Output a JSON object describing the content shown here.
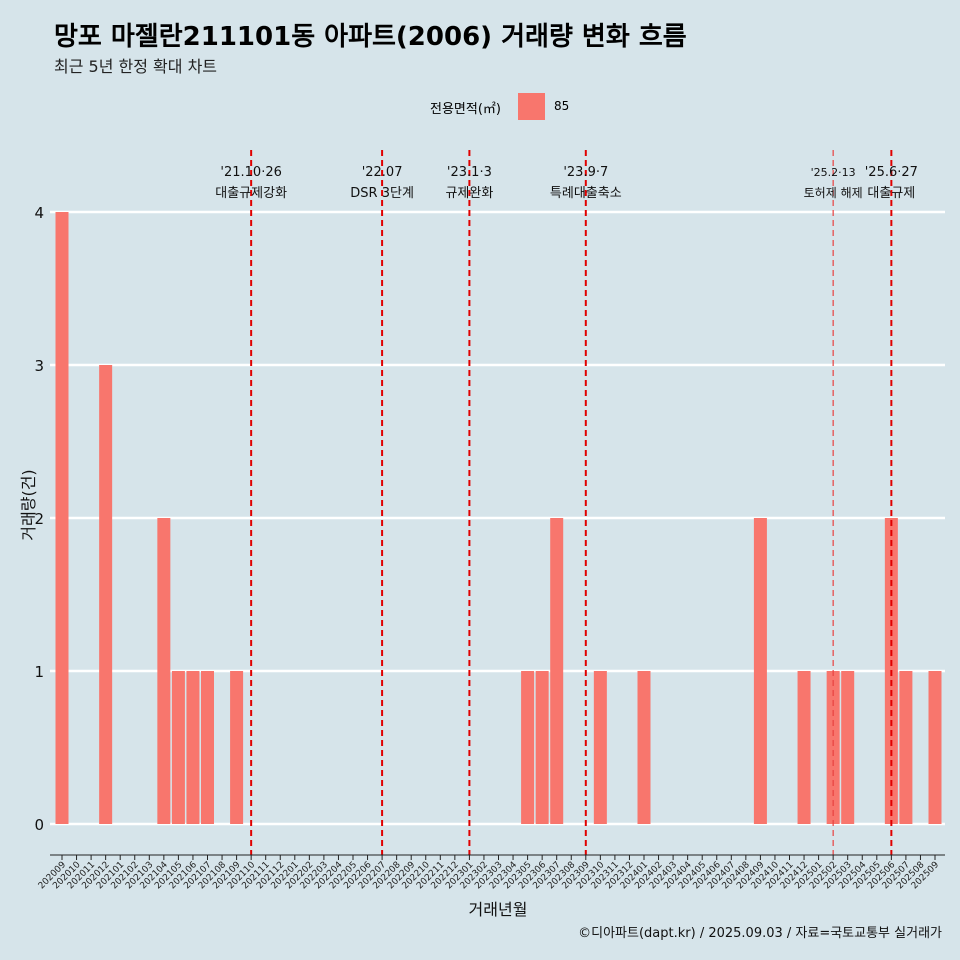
{
  "title": "망포 마젤란211101동 아파트(2006) 거래량 변화 흐름",
  "subtitle": "최근 5년 한정 확대 차트",
  "legend": {
    "title": "전용면적(㎡)",
    "label": "85",
    "color": "#f8766d"
  },
  "footer": "©디아파트(dapt.kr) / 2025.09.03 / 자료=국토교통부 실거래가",
  "chart_data": {
    "type": "bar",
    "xlabel": "거래년월",
    "ylabel": "거래량(건)",
    "ylim": [
      0,
      4
    ],
    "yticks": [
      0,
      1,
      2,
      3,
      4
    ],
    "categories": [
      "202009",
      "202010",
      "202011",
      "202012",
      "202101",
      "202102",
      "202103",
      "202104",
      "202105",
      "202106",
      "202107",
      "202108",
      "202109",
      "202110",
      "202111",
      "202112",
      "202201",
      "202202",
      "202203",
      "202204",
      "202205",
      "202206",
      "202207",
      "202208",
      "202209",
      "202210",
      "202211",
      "202212",
      "202301",
      "202302",
      "202303",
      "202304",
      "202305",
      "202306",
      "202307",
      "202308",
      "202309",
      "202310",
      "202311",
      "202312",
      "202401",
      "202402",
      "202403",
      "202404",
      "202405",
      "202406",
      "202407",
      "202408",
      "202409",
      "202410",
      "202411",
      "202412",
      "202501",
      "202502",
      "202503",
      "202504",
      "202505",
      "202506",
      "202507",
      "202508",
      "202509"
    ],
    "series": [
      {
        "name": "85",
        "values": [
          4,
          0,
          0,
          3,
          0,
          0,
          0,
          2,
          1,
          1,
          1,
          0,
          1,
          0,
          0,
          0,
          0,
          0,
          0,
          0,
          0,
          0,
          0,
          0,
          0,
          0,
          0,
          0,
          0,
          0,
          0,
          0,
          1,
          1,
          2,
          0,
          0,
          1,
          0,
          0,
          1,
          0,
          0,
          0,
          0,
          0,
          0,
          0,
          2,
          0,
          0,
          1,
          0,
          1,
          1,
          0,
          0,
          2,
          1,
          0,
          1
        ]
      }
    ],
    "annotations": [
      {
        "x": "202110",
        "line1": "'21.10·26",
        "line2": "대출규제강화",
        "small": false,
        "dashed": "strong"
      },
      {
        "x": "202207",
        "line1": "'22.07",
        "line2": "DSR 3단계",
        "small": false,
        "dashed": "strong"
      },
      {
        "x": "202301",
        "line1": "'23.1·3",
        "line2": "규제완화",
        "small": false,
        "dashed": "strong"
      },
      {
        "x": "202309",
        "line1": "'23.9·7",
        "line2": "특례대출축소",
        "small": false,
        "dashed": "strong"
      },
      {
        "x": "202502",
        "line1": "'25.2·13",
        "line2": "토허제 해제",
        "small": true,
        "dashed": "light"
      },
      {
        "x": "202506",
        "line1": "'25.6·27",
        "line2": "대출규제",
        "small": false,
        "dashed": "strong"
      }
    ]
  }
}
